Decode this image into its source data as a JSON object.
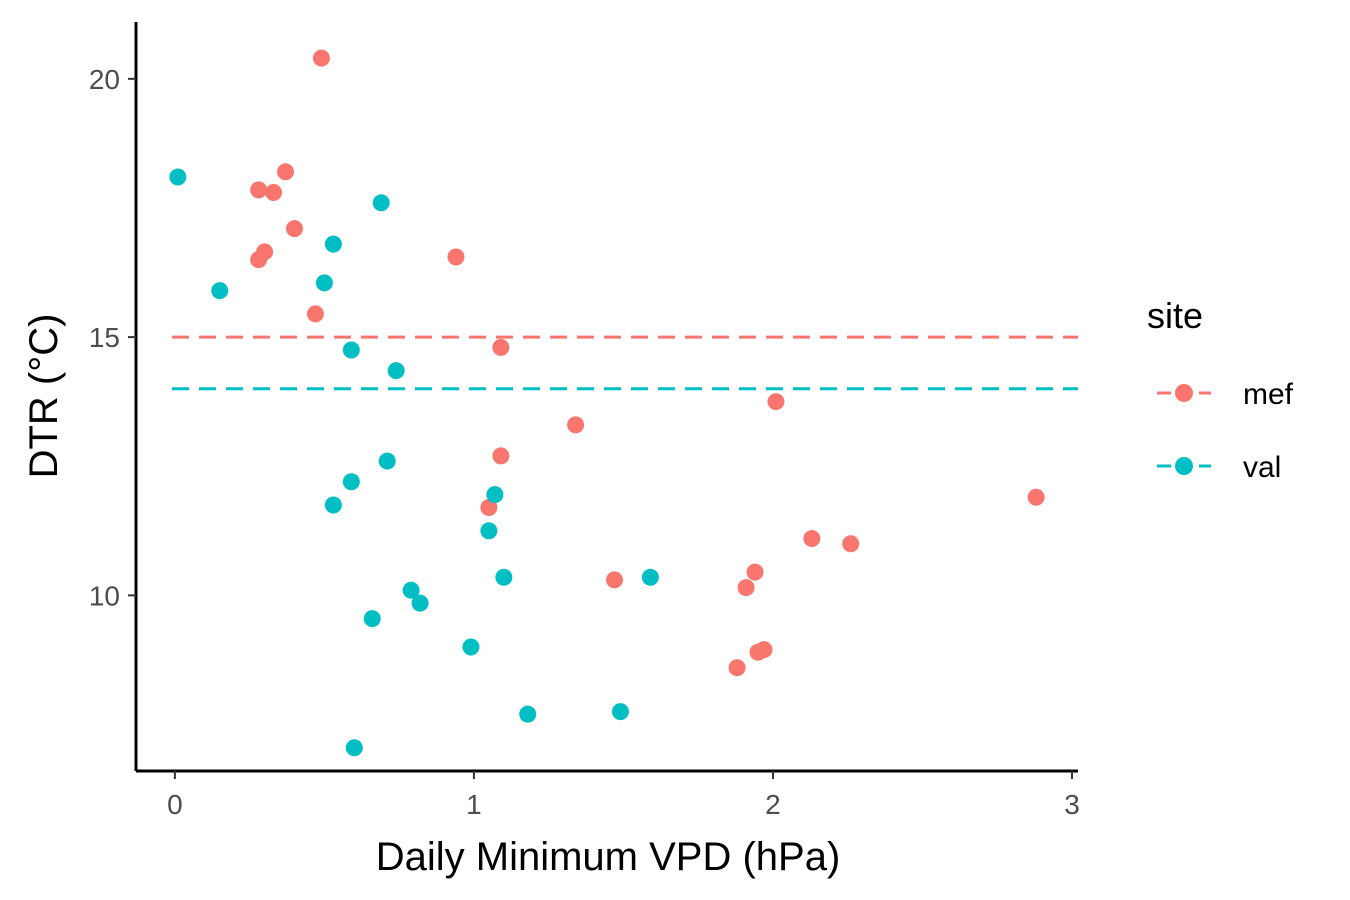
{
  "chart_data": {
    "type": "scatter",
    "xlabel": "Daily Minimum VPD (hPa)",
    "ylabel": "DTR (°C)",
    "xlim": [
      -0.13,
      3.02
    ],
    "ylim": [
      6.6,
      21.1
    ],
    "x_ticks": [
      0,
      1,
      2,
      3
    ],
    "y_ticks": [
      10,
      15,
      20
    ],
    "grid": false,
    "legend": {
      "title": "site",
      "placement": "right"
    },
    "series": [
      {
        "name": "mef",
        "color": "#F8766D",
        "hline": 15.0,
        "points": [
          [
            0.49,
            20.4
          ],
          [
            0.28,
            17.85
          ],
          [
            0.33,
            17.8
          ],
          [
            0.37,
            18.2
          ],
          [
            0.4,
            17.1
          ],
          [
            0.3,
            16.65
          ],
          [
            0.28,
            16.5
          ],
          [
            0.47,
            15.45
          ],
          [
            0.94,
            16.55
          ],
          [
            1.09,
            14.8
          ],
          [
            1.34,
            13.3
          ],
          [
            2.01,
            13.75
          ],
          [
            1.09,
            12.7
          ],
          [
            1.05,
            11.7
          ],
          [
            2.88,
            11.9
          ],
          [
            2.13,
            11.1
          ],
          [
            2.26,
            11.0
          ],
          [
            1.47,
            10.3
          ],
          [
            1.94,
            10.45
          ],
          [
            1.91,
            10.15
          ],
          [
            1.97,
            8.95
          ],
          [
            1.95,
            8.9
          ],
          [
            1.88,
            8.6
          ]
        ]
      },
      {
        "name": "val",
        "color": "#00BFC4",
        "hline": 14.0,
        "points": [
          [
            0.01,
            18.1
          ],
          [
            0.15,
            15.9
          ],
          [
            0.69,
            17.6
          ],
          [
            0.53,
            16.8
          ],
          [
            0.5,
            16.05
          ],
          [
            0.59,
            14.75
          ],
          [
            0.74,
            14.35
          ],
          [
            0.71,
            12.6
          ],
          [
            0.59,
            12.2
          ],
          [
            0.53,
            11.75
          ],
          [
            1.07,
            11.95
          ],
          [
            1.05,
            11.25
          ],
          [
            1.1,
            10.35
          ],
          [
            1.59,
            10.35
          ],
          [
            0.79,
            10.1
          ],
          [
            0.82,
            9.85
          ],
          [
            0.66,
            9.55
          ],
          [
            0.99,
            9.0
          ],
          [
            1.18,
            7.7
          ],
          [
            1.49,
            7.75
          ],
          [
            0.6,
            7.05
          ]
        ]
      }
    ]
  }
}
